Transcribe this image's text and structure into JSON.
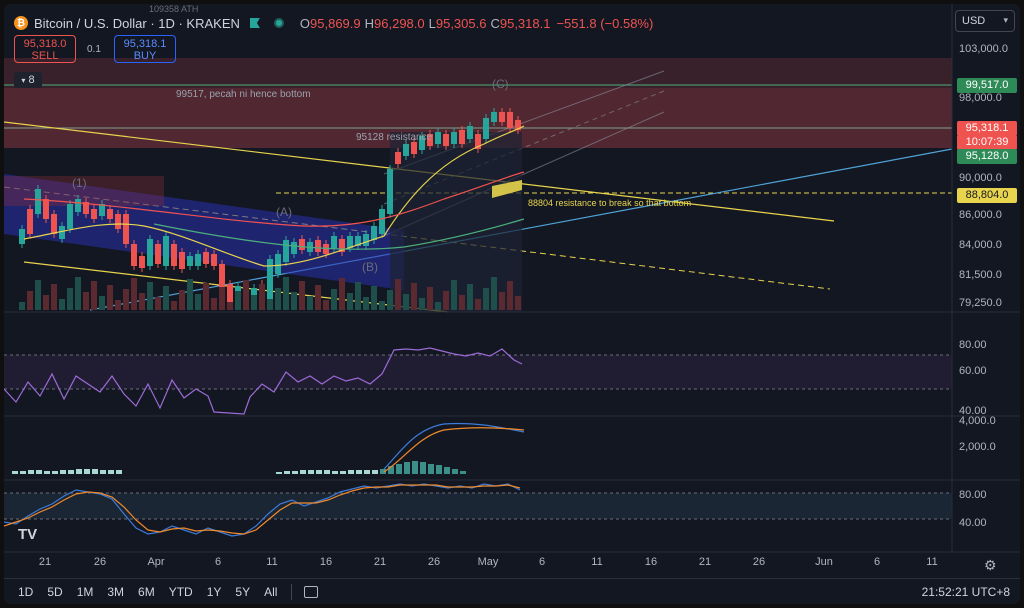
{
  "header": {
    "symbol": "Bitcoin / U.S. Dollar · 1D · KRAKEN",
    "ohlc": [
      {
        "k": "O",
        "v": "95,869.9"
      },
      {
        "k": "H",
        "v": "96,298.0"
      },
      {
        "k": "L",
        "v": "95,305.6"
      },
      {
        "k": "C",
        "v": "95,318.1"
      }
    ],
    "change": "−551.8 (−0.58%)",
    "ath_label": "109358 ATH"
  },
  "trade": {
    "sell_price": "95,318.0",
    "sell_label": "SELL",
    "spread": "0.1",
    "buy_price": "95,318.1",
    "buy_label": "BUY"
  },
  "indicators_toggle": {
    "count": "8"
  },
  "currency": {
    "label": "USD"
  },
  "price_axis": [
    "103,000.0",
    "98,000.0",
    "90,000.0",
    "86,000.0",
    "84,000.0",
    "81,500.0",
    "79,250.0"
  ],
  "badges": {
    "level_99517": "99,517.0",
    "current": "95,318.1",
    "countdown": "10:07:39",
    "level_95128": "95,128.0",
    "level_88804": "88,804.0"
  },
  "annotations": {
    "a1": "99517, pecah ni hence bottom",
    "a2": "95128 resistance",
    "a3": "88804 resistance to break so that bottom",
    "wave_a": "(A)",
    "wave_b": "(B)",
    "wave_c": "(C)",
    "wave_1": "(1)"
  },
  "rsi_axis": [
    "80.00",
    "60.00",
    "40.00"
  ],
  "macd_axis": [
    "4,000.0",
    "2,000.0"
  ],
  "stoch_axis": [
    "80.00",
    "40.00"
  ],
  "time_axis": [
    {
      "label": "21",
      "x": 0
    },
    {
      "label": "26",
      "x": 0
    },
    {
      "label": "Apr",
      "x": 0
    },
    {
      "label": "6",
      "x": 0
    },
    {
      "label": "11",
      "x": 0
    },
    {
      "label": "16",
      "x": 0
    },
    {
      "label": "21",
      "x": 0
    },
    {
      "label": "26",
      "x": 0
    },
    {
      "label": "May",
      "x": 0
    },
    {
      "label": "6",
      "x": 0
    },
    {
      "label": "11",
      "x": 0
    },
    {
      "label": "16",
      "x": 0
    },
    {
      "label": "21",
      "x": 0
    },
    {
      "label": "26",
      "x": 0
    },
    {
      "label": "Jun",
      "x": 0
    },
    {
      "label": "6",
      "x": 0
    },
    {
      "label": "11",
      "x": 0
    }
  ],
  "ranges": [
    "1D",
    "5D",
    "1M",
    "3M",
    "6M",
    "YTD",
    "1Y",
    "5Y",
    "All"
  ],
  "clock": "21:52:21 UTC+8",
  "logo": "TV",
  "colors": {
    "up": "#26a69a",
    "down": "#ef5350",
    "blue_line": "#4fa3d8",
    "yellow": "#e8d44d"
  }
}
